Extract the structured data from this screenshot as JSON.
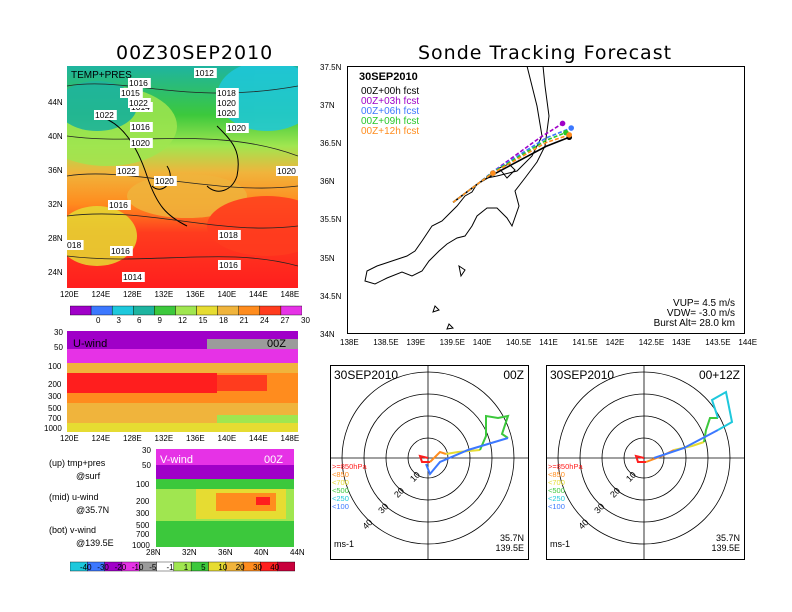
{
  "left_title": "00Z30SEP2010",
  "right_title": "Sonde Tracking Forecast",
  "colors": {
    "red": "#ff1e1e",
    "orange": "#ff8c1e",
    "gold": "#f0b43c",
    "yellow": "#e6dc32",
    "ltgreen": "#a0e650",
    "green": "#3cc83c",
    "teal": "#1eb4a0",
    "cyan": "#1ec8dc",
    "blue": "#3c78ff",
    "purple": "#a000c8",
    "magenta": "#e632e6",
    "gray": "#9b9b9b",
    "track0": "#000000",
    "track3": "#a000c8",
    "track6": "#3c78ff",
    "track9": "#28c828",
    "track12": "#ff8c1e"
  },
  "chart_data": [
    {
      "type": "heatmap",
      "name": "surface temperature and pressure map",
      "label": "TEMP+PRES",
      "x_ticks": [
        "120E",
        "124E",
        "128E",
        "132E",
        "136E",
        "140E",
        "144E",
        "148E"
      ],
      "y_ticks": [
        "24N",
        "28N",
        "32N",
        "36N",
        "40N",
        "44N"
      ],
      "isobar_labels": [
        "1012",
        "1016",
        "1015",
        "1014",
        "1016",
        "1018",
        "1020",
        "1022",
        "1020",
        "1022",
        "1020",
        "1020",
        "1022",
        "1020",
        "1016",
        "1020",
        "018",
        "1016",
        "1018",
        "1014",
        "1016"
      ],
      "colorbar": [
        0,
        3,
        6,
        9,
        12,
        15,
        18,
        21,
        24,
        27,
        30
      ]
    },
    {
      "type": "heatmap",
      "name": "u-wind cross section",
      "label": "U-wind",
      "time_label": "00Z",
      "x_ticks": [
        "120E",
        "124E",
        "128E",
        "132E",
        "136E",
        "140E",
        "144E",
        "148E"
      ],
      "y_ticks": [
        "30",
        "50",
        "100",
        "200",
        "300",
        "500",
        "700",
        "1000"
      ]
    },
    {
      "type": "heatmap",
      "name": "v-wind cross section",
      "label": "V-wind",
      "time_label": "00Z",
      "x_ticks": [
        "28N",
        "32N",
        "36N",
        "40N",
        "44N"
      ],
      "y_ticks": [
        "30",
        "50",
        "100",
        "200",
        "300",
        "500",
        "700",
        "1000"
      ],
      "colorbar": [
        -40,
        -30,
        -20,
        -10,
        -5,
        -1,
        1,
        5,
        10,
        20,
        30,
        40
      ]
    },
    {
      "type": "line",
      "name": "sonde track forecast",
      "date_label": "30SEP2010",
      "x_ticks": [
        "138E",
        "138.5E",
        "139E",
        "139.5E",
        "140E",
        "140.5E",
        "141E",
        "141.5E",
        "142E",
        "142.5E",
        "143E",
        "143.5E",
        "144E"
      ],
      "y_ticks": [
        "34N",
        "34.5N",
        "35N",
        "35.5N",
        "36N",
        "36.5N",
        "37N",
        "37.5N"
      ],
      "xlim": [
        138,
        144
      ],
      "ylim": [
        34,
        37.5
      ],
      "series": [
        {
          "name": "00Z+00h fcst",
          "points": [
            [
              139.6,
              35.72
            ],
            [
              140.0,
              35.98
            ],
            [
              140.2,
              36.08
            ],
            [
              141.0,
              36.45
            ],
            [
              141.35,
              36.57
            ]
          ]
        },
        {
          "name": "00Z+03h fcst",
          "points": [
            [
              139.6,
              35.72
            ],
            [
              140.0,
              35.98
            ],
            [
              140.2,
              36.12
            ],
            [
              140.9,
              36.56
            ],
            [
              141.25,
              36.75
            ]
          ]
        },
        {
          "name": "00Z+06h fcst",
          "points": [
            [
              139.6,
              35.72
            ],
            [
              140.0,
              35.98
            ],
            [
              140.2,
              36.12
            ],
            [
              141.0,
              36.56
            ],
            [
              141.38,
              36.69
            ]
          ]
        },
        {
          "name": "00Z+09h fcst",
          "points": [
            [
              139.6,
              35.72
            ],
            [
              140.0,
              35.98
            ],
            [
              140.2,
              36.11
            ],
            [
              141.0,
              36.53
            ],
            [
              141.3,
              36.63
            ]
          ]
        },
        {
          "name": "00Z+12h fcst",
          "points": [
            [
              139.6,
              35.72
            ],
            [
              140.0,
              35.98
            ],
            [
              140.2,
              36.1
            ],
            [
              141.0,
              36.5
            ],
            [
              141.35,
              36.6
            ]
          ]
        }
      ],
      "stats": [
        "VUP= 4.5 m/s",
        "VDW= -3.0 m/s",
        "Burst Alt= 28.0 km"
      ]
    },
    {
      "type": "line",
      "name": "hodograph 00Z",
      "date_label": "30SEP2010",
      "time_label": "00Z",
      "ring_labels": [
        "10",
        "20",
        "30",
        "40"
      ],
      "levels": [
        ">=850hPa",
        "<850",
        "<700",
        "<500",
        "<250",
        "<100"
      ],
      "units": "ms-1",
      "loc": [
        "35.7N",
        "139.5E"
      ]
    },
    {
      "type": "line",
      "name": "hodograph 00+12Z",
      "date_label": "30SEP2010",
      "time_label": "00+12Z",
      "ring_labels": [
        "10",
        "20",
        "30",
        "40"
      ],
      "levels": [
        ">=850hPa",
        "<850",
        "<700",
        "<500",
        "<250",
        "<100"
      ],
      "units": "ms-1",
      "loc": [
        "35.7N",
        "139.5E"
      ]
    }
  ],
  "legend_notes": [
    {
      "line1": "(up) tmp+pres",
      "line2": "@surf"
    },
    {
      "line1": "(mid) u-wind",
      "line2": "@35.7N"
    },
    {
      "line1": "(bot) v-wind",
      "line2": "@139.5E"
    }
  ]
}
